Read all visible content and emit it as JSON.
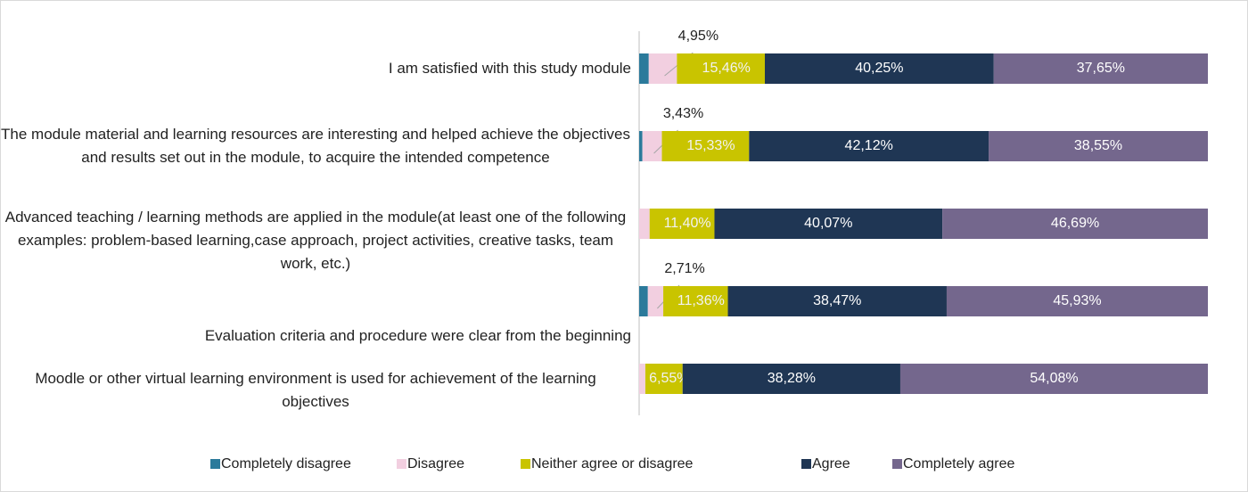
{
  "chart_data": {
    "type": "stacked_barh",
    "categories": [
      "I am satisfied with this study module",
      "The module material and learning resources are interesting and helped achieve the objectives and results set out in the module, to acquire the intended competence",
      "Advanced teaching / learning methods are applied in the module(at least one of the following examples: problem-based learning,case approach, project activities, creative tasks, team work, etc.)",
      "Evaluation criteria and procedure were clear from the beginning",
      "Moodle or other virtual learning environment is used for achievement of the learning objectives"
    ],
    "xlim": [
      0,
      100
    ],
    "legend": "bottom",
    "series": [
      {
        "name": "Completely disagree",
        "color": "#2b7a9b",
        "values": [
          1.69,
          0.57,
          0,
          1.53,
          0
        ],
        "value_labels": [
          null,
          null,
          null,
          null,
          null
        ]
      },
      {
        "name": "Disagree",
        "color": "#f2cfe0",
        "values": [
          4.95,
          3.43,
          1.84,
          2.71,
          1.09
        ],
        "value_labels": [
          "4,95%",
          "3,43%",
          null,
          "2,71%",
          null
        ]
      },
      {
        "name": "Neither agree or disagree",
        "color": "#c9c400",
        "values": [
          15.46,
          15.33,
          11.4,
          11.36,
          6.55
        ],
        "value_labels": [
          "15,46%",
          "15,33%",
          "11,40%",
          "11,36%",
          "6,55%"
        ]
      },
      {
        "name": "Agree",
        "color": "#1f3654",
        "values": [
          40.25,
          42.12,
          40.07,
          38.47,
          38.28
        ],
        "value_labels": [
          "40,25%",
          "42,12%",
          "40,07%",
          "38,47%",
          "38,28%"
        ]
      },
      {
        "name": "Completely agree",
        "color": "#74678d",
        "values": [
          37.65,
          38.55,
          46.69,
          45.93,
          54.08
        ],
        "value_labels": [
          "37,65%",
          "38,55%",
          "46,69%",
          "45,93%",
          "54,08%"
        ]
      }
    ]
  }
}
